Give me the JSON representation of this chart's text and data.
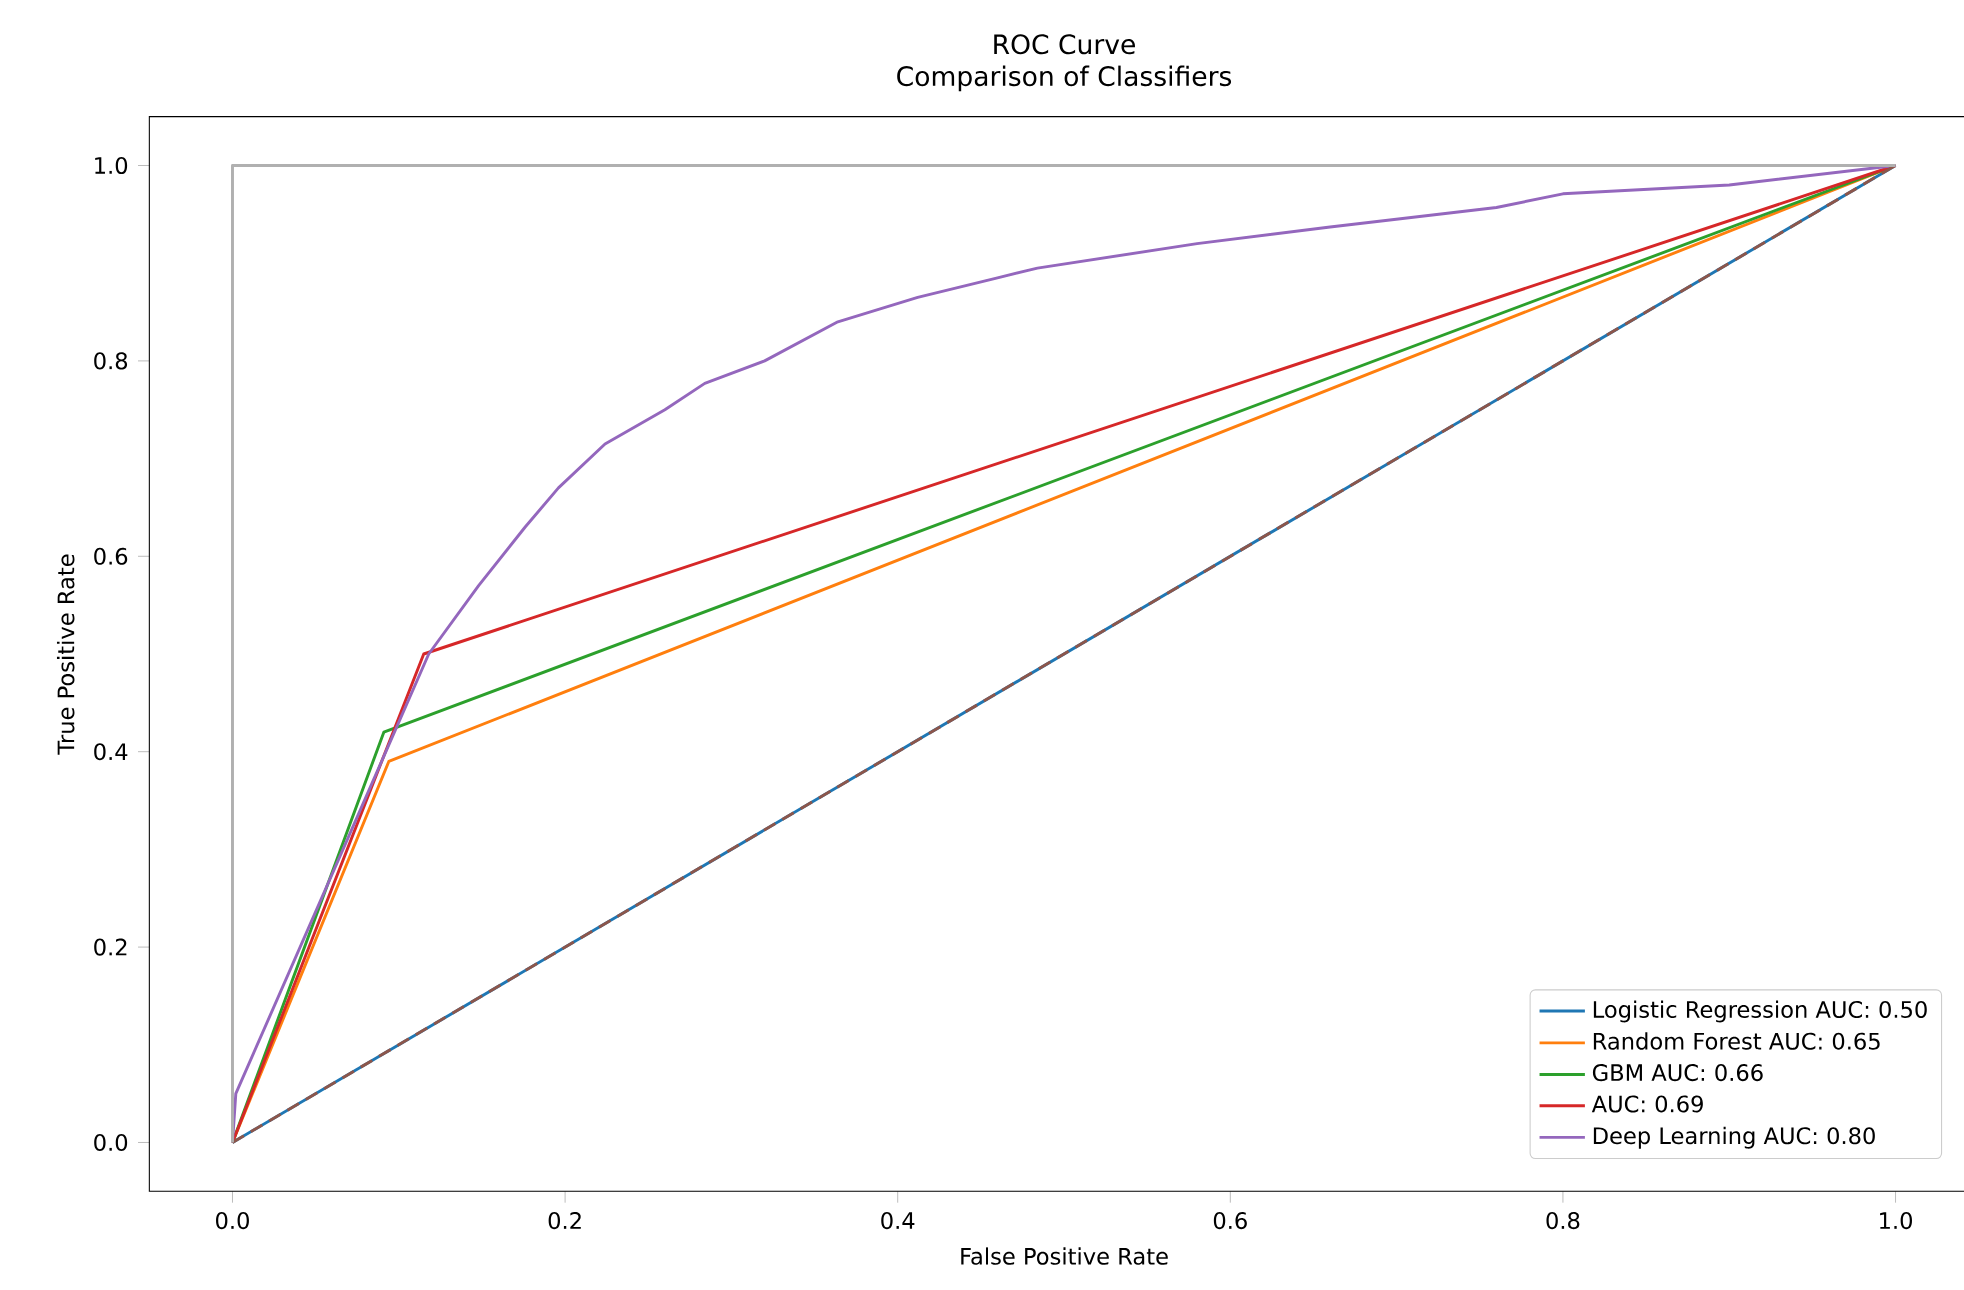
{
  "chart_data": {
    "type": "line",
    "title": "ROC Curve",
    "subtitle": "Comparison of Classifiers",
    "xlabel": "False Positive Rate",
    "ylabel": "True Positive Rate",
    "xlim": [
      -0.05,
      1.05
    ],
    "ylim": [
      -0.05,
      1.05
    ],
    "xticks": [
      {
        "value": 0,
        "label": "0.0"
      },
      0.2,
      0.4,
      0.6,
      0.8,
      {
        "value": 1,
        "label": "1.0"
      }
    ],
    "yticks": [
      {
        "value": 0,
        "label": "0.0"
      },
      0.2,
      0.4,
      0.6,
      0.8,
      {
        "value": 1,
        "label": "1.0"
      }
    ],
    "grid": false,
    "legend": "bottom right",
    "marker": "none",
    "series": [
      {
        "name": "Logistic Regression AUC: 0.50",
        "color": "#1f77b4",
        "x": [
          0,
          1
        ],
        "values": [
          0,
          1
        ]
      },
      {
        "name": "Random Forest AUC: 0.65",
        "color": "#ff7f0e",
        "x": [
          0,
          0.094,
          1
        ],
        "values": [
          0,
          0.39,
          1
        ]
      },
      {
        "name": "GBM AUC: 0.66",
        "color": "#2ca02c",
        "x": [
          0,
          0.091,
          1
        ],
        "values": [
          0,
          0.42,
          1
        ]
      },
      {
        "name": "AUC: 0.69",
        "color": "#d62728",
        "x": [
          0,
          0.115,
          1
        ],
        "values": [
          0,
          0.5,
          1
        ]
      },
      {
        "name": "Deep Learning AUC: 0.80",
        "color": "#9467bd",
        "x": [
          0,
          0.002,
          0.118,
          0.148,
          0.176,
          0.196,
          0.224,
          0.26,
          0.284,
          0.32,
          0.364,
          0.412,
          0.46,
          0.484,
          0.58,
          0.66,
          0.76,
          0.8,
          0.9,
          1
        ],
        "values": [
          0,
          0.05,
          0.5,
          0.57,
          0.63,
          0.67,
          0.715,
          0.75,
          0.777,
          0.8,
          0.84,
          0.865,
          0.885,
          0.895,
          0.92,
          0.937,
          0.957,
          0.971,
          0.98,
          1
        ]
      },
      {
        "color": "#8c564b",
        "line_style": "dashed",
        "x": [
          0,
          1
        ],
        "values": [
          0,
          1
        ]
      },
      {
        "color": "#b0b0b0",
        "x": [
          0,
          0,
          1
        ],
        "values": [
          0,
          1,
          1
        ]
      }
    ]
  }
}
